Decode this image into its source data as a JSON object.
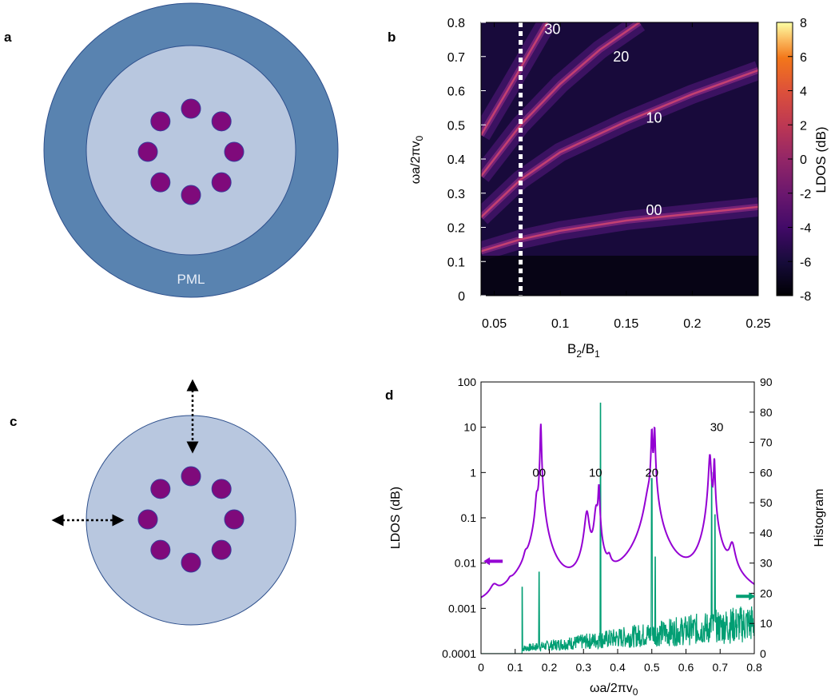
{
  "panels": {
    "a": {
      "letter": "a",
      "pml_label": "PML"
    },
    "b": {
      "letter": "b"
    },
    "c": {
      "letter": "c"
    },
    "d": {
      "letter": "d"
    }
  },
  "colors": {
    "pml_ring": "#5983b0",
    "domain": "#b8c7df",
    "rod": "#7f0a7b",
    "ldos_line": "#9400d3",
    "histogram_line": "#009e73"
  },
  "chart_data": [
    {
      "type": "heatmap",
      "panel": "b",
      "xlabel_main": "B",
      "xlabel_sub1": "2",
      "xlabel_mid": "/B",
      "xlabel_sub2": "1",
      "ylabel": "ωa/2πv0",
      "ylabel_main": "ωa/2πv",
      "ylabel_sub": "0",
      "colorbar_label": "LDOS (dB)",
      "xlim": [
        0.04,
        0.25
      ],
      "ylim": [
        0,
        0.8
      ],
      "xticks": [
        "0.05",
        "0.1",
        "0.15",
        "0.2",
        "0.25"
      ],
      "xtick_values": [
        0.05,
        0.1,
        0.15,
        0.2,
        0.25
      ],
      "yticks": [
        "0",
        "0.1",
        "0.2",
        "0.3",
        "0.4",
        "0.5",
        "0.6",
        "0.7",
        "0.8"
      ],
      "ytick_values": [
        0,
        0.1,
        0.2,
        0.3,
        0.4,
        0.5,
        0.6,
        0.7,
        0.8
      ],
      "colorbar_range": [
        -8,
        8
      ],
      "colorbar_ticks": [
        "-8",
        "-6",
        "-4",
        "-2",
        "0",
        "2",
        "4",
        "6",
        "8"
      ],
      "colorbar_tick_values": [
        -8,
        -6,
        -4,
        -2,
        0,
        2,
        4,
        6,
        8
      ],
      "dashed_line_x": 0.07,
      "annotations": [
        {
          "text": "30",
          "x": 0.088,
          "y": 0.78
        },
        {
          "text": "20",
          "x": 0.14,
          "y": 0.7
        },
        {
          "text": "10",
          "x": 0.165,
          "y": 0.52
        },
        {
          "text": "00",
          "x": 0.165,
          "y": 0.25
        }
      ],
      "bands": [
        {
          "mode": "00",
          "points": [
            [
              0.04,
              0.13
            ],
            [
              0.07,
              0.165
            ],
            [
              0.1,
              0.19
            ],
            [
              0.15,
              0.22
            ],
            [
              0.2,
              0.24
            ],
            [
              0.25,
              0.26
            ]
          ]
        },
        {
          "mode": "10",
          "points": [
            [
              0.04,
              0.23
            ],
            [
              0.07,
              0.34
            ],
            [
              0.1,
              0.42
            ],
            [
              0.15,
              0.51
            ],
            [
              0.2,
              0.59
            ],
            [
              0.25,
              0.66
            ]
          ]
        },
        {
          "mode": "20",
          "points": [
            [
              0.04,
              0.35
            ],
            [
              0.07,
              0.5
            ],
            [
              0.1,
              0.62
            ],
            [
              0.13,
              0.72
            ],
            [
              0.16,
              0.8
            ]
          ]
        },
        {
          "mode": "30",
          "points": [
            [
              0.04,
              0.47
            ],
            [
              0.06,
              0.6
            ],
            [
              0.075,
              0.7
            ],
            [
              0.09,
              0.8
            ]
          ]
        }
      ]
    },
    {
      "type": "line",
      "panel": "d",
      "xlabel_main": "ωa/2πv",
      "xlabel_sub": "0",
      "ylabel_left": "LDOS (dB)",
      "ylabel_right": "Histogram",
      "xlim": [
        0,
        0.8
      ],
      "ylim_left": [
        0.0001,
        100
      ],
      "yscale_left": "log",
      "ylim_right": [
        0,
        90
      ],
      "xticks": [
        "0",
        "0.1",
        "0.2",
        "0.3",
        "0.4",
        "0.5",
        "0.6",
        "0.7",
        "0.8"
      ],
      "xtick_values": [
        0,
        0.1,
        0.2,
        0.3,
        0.4,
        0.5,
        0.6,
        0.7,
        0.8
      ],
      "yticks_left": [
        "0.0001",
        "0.001",
        "0.01",
        "0.1",
        "1",
        "10",
        "100"
      ],
      "ytick_left_values": [
        0.0001,
        0.001,
        0.01,
        0.1,
        1,
        10,
        100
      ],
      "yticks_right": [
        "0",
        "10",
        "20",
        "30",
        "40",
        "50",
        "60",
        "70",
        "80",
        "90"
      ],
      "ytick_right_values": [
        0,
        10,
        20,
        30,
        40,
        50,
        60,
        70,
        80,
        90
      ],
      "annotations": [
        {
          "text": "00",
          "x": 0.16,
          "y": 1.0
        },
        {
          "text": "10",
          "x": 0.325,
          "y": 1.0
        },
        {
          "text": "20",
          "x": 0.49,
          "y": 1.0
        },
        {
          "text": "30",
          "x": 0.68,
          "y": 10
        }
      ],
      "ldos_peaks": [
        {
          "f": 0.038,
          "a": 0.0012,
          "w": 0.012
        },
        {
          "f": 0.085,
          "a": 0.0006,
          "w": 0.006
        },
        {
          "f": 0.13,
          "a": 0.0045,
          "w": 0.005
        },
        {
          "f": 0.163,
          "a": 0.22,
          "w": 0.0035
        },
        {
          "f": 0.175,
          "a": 12.0,
          "w": 0.0014
        },
        {
          "f": 0.31,
          "a": 0.13,
          "w": 0.006
        },
        {
          "f": 0.337,
          "a": 0.15,
          "w": 0.005
        },
        {
          "f": 0.345,
          "a": 0.5,
          "w": 0.002
        },
        {
          "f": 0.375,
          "a": 0.005,
          "w": 0.005
        },
        {
          "f": 0.49,
          "a": 0.25,
          "w": 0.01
        },
        {
          "f": 0.5,
          "a": 9.0,
          "w": 0.0016
        },
        {
          "f": 0.508,
          "a": 10.0,
          "w": 0.0016
        },
        {
          "f": 0.67,
          "a": 2.5,
          "w": 0.003
        },
        {
          "f": 0.683,
          "a": 2.0,
          "w": 0.0016
        },
        {
          "f": 0.735,
          "a": 0.02,
          "w": 0.008
        }
      ],
      "ldos_base": 0.0003,
      "histogram_spikes": [
        {
          "f": 0.12,
          "h": 22
        },
        {
          "f": 0.17,
          "h": 27
        },
        {
          "f": 0.35,
          "h": 83
        },
        {
          "f": 0.5,
          "h": 58
        },
        {
          "f": 0.51,
          "h": 32
        },
        {
          "f": 0.675,
          "h": 60
        },
        {
          "f": 0.685,
          "h": 46
        }
      ],
      "histogram_noise": {
        "start": 0.12,
        "end": 0.8,
        "level_start": 2,
        "level_end": 12
      },
      "arrows": [
        {
          "series": "LDOS",
          "direction": "left",
          "x": 0.04,
          "y": 0.011
        },
        {
          "series": "Histogram",
          "direction": "right",
          "x": 0.77,
          "y": 19
        }
      ]
    }
  ]
}
